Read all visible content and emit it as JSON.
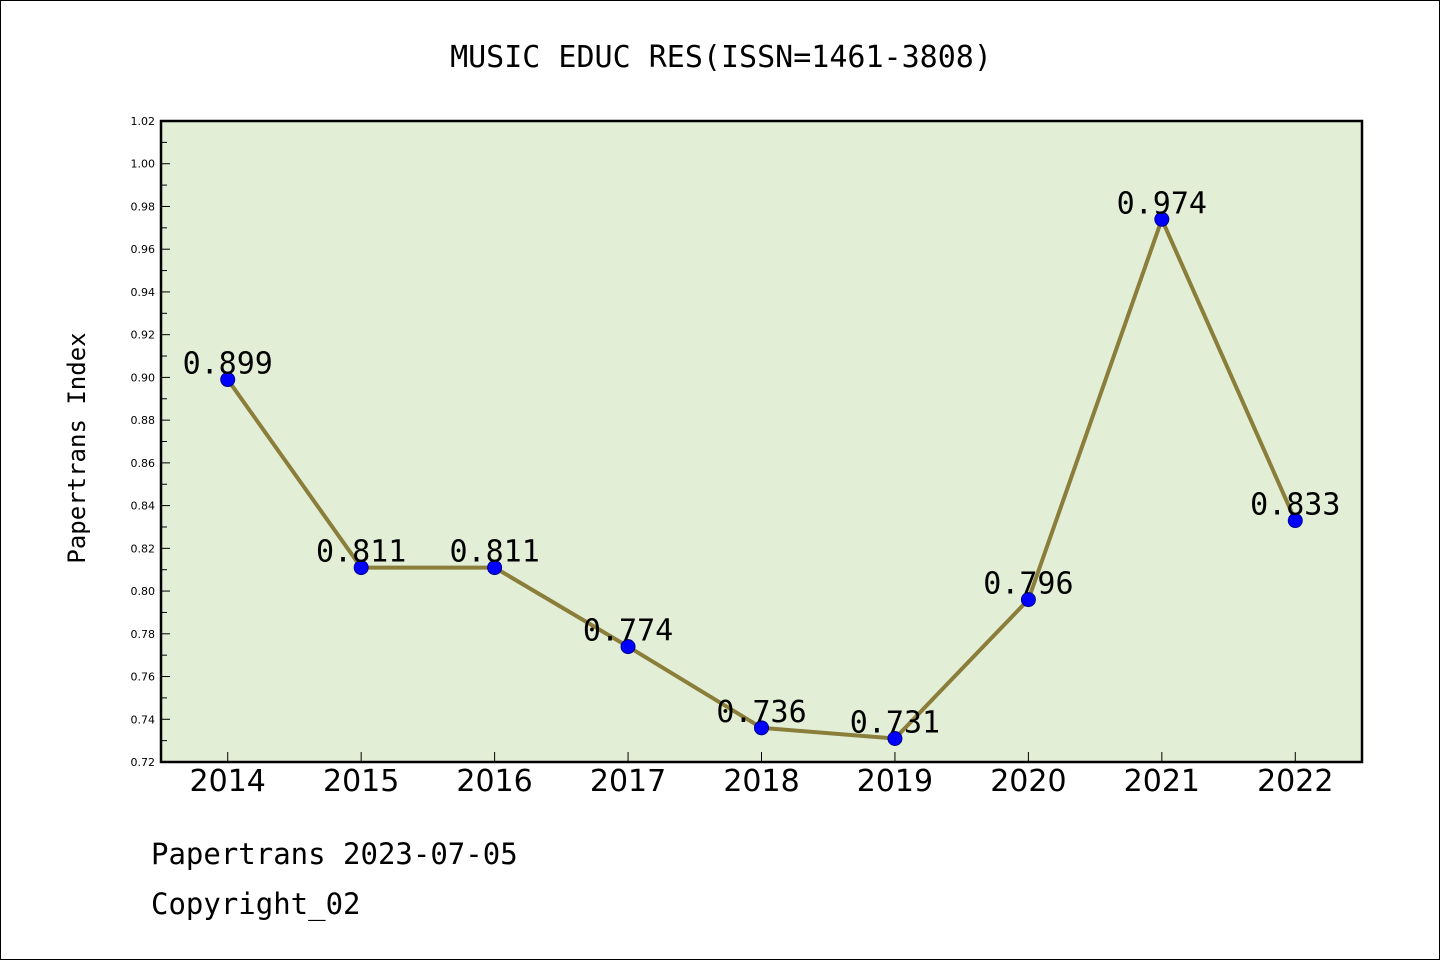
{
  "chart_data": {
    "type": "line",
    "title": "MUSIC EDUC RES(ISSN=1461-3808)",
    "xlabel": "",
    "ylabel": "Papertrans Index",
    "categories": [
      "2014",
      "2015",
      "2016",
      "2017",
      "2018",
      "2019",
      "2020",
      "2021",
      "2022"
    ],
    "series": [
      {
        "values": [
          0.899,
          0.811,
          0.811,
          0.774,
          0.736,
          0.731,
          0.796,
          0.974,
          0.833
        ],
        "data_labels": [
          "0.899",
          "0.811",
          "0.811",
          "0.774",
          "0.736",
          "0.731",
          "0.796",
          "0.974",
          "0.833"
        ],
        "line_color": "#8b7d3a",
        "marker_color": "#0000ff"
      }
    ],
    "ylim": [
      0.72,
      1.02
    ],
    "yticks": [
      "0.72",
      "0.74",
      "0.76",
      "0.78",
      "0.80",
      "0.82",
      "0.84",
      "0.86",
      "0.88",
      "0.90",
      "0.92",
      "0.94",
      "0.96",
      "0.98",
      "1.00",
      "1.02"
    ],
    "grid": false,
    "legend": "none",
    "plot_background": "#e2efd6"
  },
  "footer": {
    "line1": "Papertrans 2023-07-05",
    "line2": "Copyright_02"
  }
}
